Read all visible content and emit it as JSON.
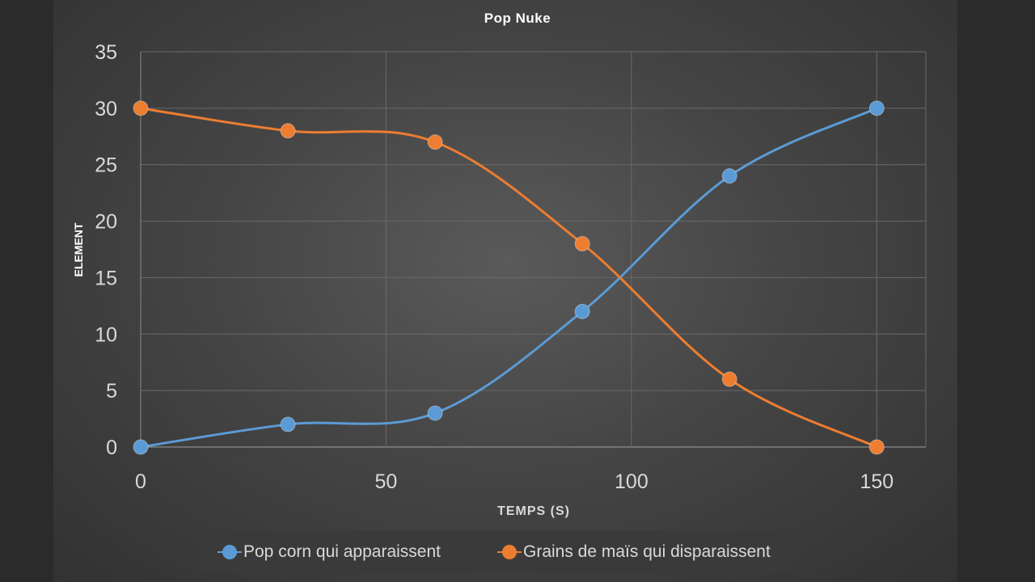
{
  "chart_data": {
    "type": "line",
    "title": "Pop Nuke",
    "xlabel": "TEMPS (S)",
    "ylabel": "ELEMENT",
    "xlim": [
      0,
      160
    ],
    "ylim": [
      0,
      35
    ],
    "x_ticks": [
      0,
      50,
      100,
      150
    ],
    "y_ticks": [
      0,
      5,
      10,
      15,
      20,
      25,
      30,
      35
    ],
    "grid": true,
    "legend_position": "bottom",
    "series": [
      {
        "name": "Pop corn qui apparaissent",
        "color": "#5b9bd5",
        "x": [
          0,
          30,
          60,
          90,
          120,
          150
        ],
        "y": [
          0,
          2,
          3,
          12,
          24,
          30
        ]
      },
      {
        "name": "Grains de maïs qui disparaissent",
        "color": "#ed7d31",
        "x": [
          0,
          30,
          60,
          90,
          120,
          150
        ],
        "y": [
          30,
          28,
          27,
          18,
          6,
          0
        ]
      }
    ]
  }
}
